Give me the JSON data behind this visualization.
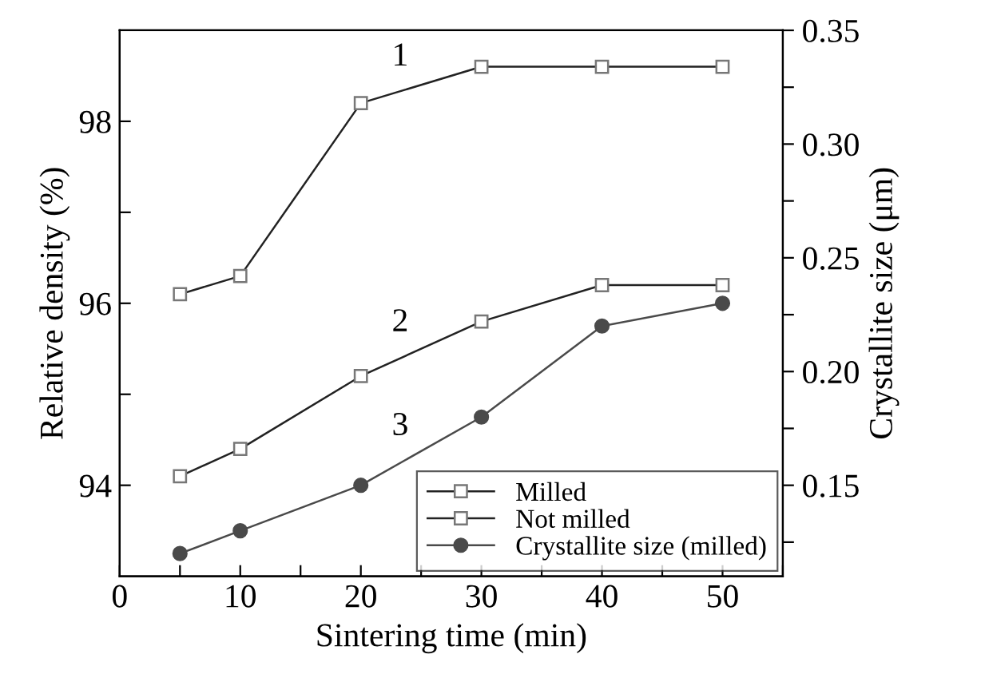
{
  "chart_data": {
    "type": "line",
    "xlabel": "Sintering time (min)",
    "ylabel": "Relative density (%)",
    "y2label": "Crystallite size (μm)",
    "x": [
      5,
      10,
      20,
      30,
      40,
      50
    ],
    "series": [
      {
        "name": "Milled",
        "color": "#222222",
        "marker": "square",
        "values": [
          96.1,
          96.3,
          98.2,
          98.6,
          98.6,
          98.6
        ]
      },
      {
        "name": "Not milled",
        "color": "#222222",
        "marker": "square",
        "values": [
          94.1,
          94.4,
          95.2,
          95.8,
          96.2,
          96.2
        ]
      },
      {
        "name": "Crystallite size (milled)",
        "color": "#4a4a4a",
        "marker": "circle",
        "axis": "y2",
        "values": [
          0.12,
          0.13,
          0.15,
          0.18,
          0.22,
          0.23
        ]
      }
    ],
    "xlim": [
      0,
      55
    ],
    "xticks": [
      0,
      {
        "value": 5,
        "label": null
      },
      10,
      {
        "value": 15,
        "label": null
      },
      20,
      {
        "value": 25,
        "label": null
      },
      30,
      {
        "value": 35,
        "label": null
      },
      40,
      {
        "value": 45,
        "label": null
      },
      50,
      {
        "value": 55,
        "label": null
      }
    ],
    "ylim": [
      93,
      99
    ],
    "yticks": [
      94,
      {
        "value": 95,
        "label": null
      },
      96,
      {
        "value": 97,
        "label": null
      },
      98
    ],
    "y2lim": [
      0.11,
      0.35
    ],
    "y2ticks": [
      {
        "value": 0.125,
        "label": null
      },
      {
        "value": 0.15,
        "label": "0.15"
      },
      {
        "value": 0.175,
        "label": null
      },
      {
        "value": 0.2,
        "label": "0.20"
      },
      {
        "value": 0.225,
        "label": null
      },
      {
        "value": 0.25,
        "label": "0.25"
      },
      {
        "value": 0.275,
        "label": null
      },
      {
        "value": 0.3,
        "label": "0.30"
      },
      {
        "value": 0.325,
        "label": null
      },
      {
        "value": 0.35,
        "label": "0.35"
      }
    ],
    "annotations": [
      "1",
      "2",
      "3"
    ],
    "legend": "bottom right",
    "grid": false,
    "line_style": "solid"
  }
}
